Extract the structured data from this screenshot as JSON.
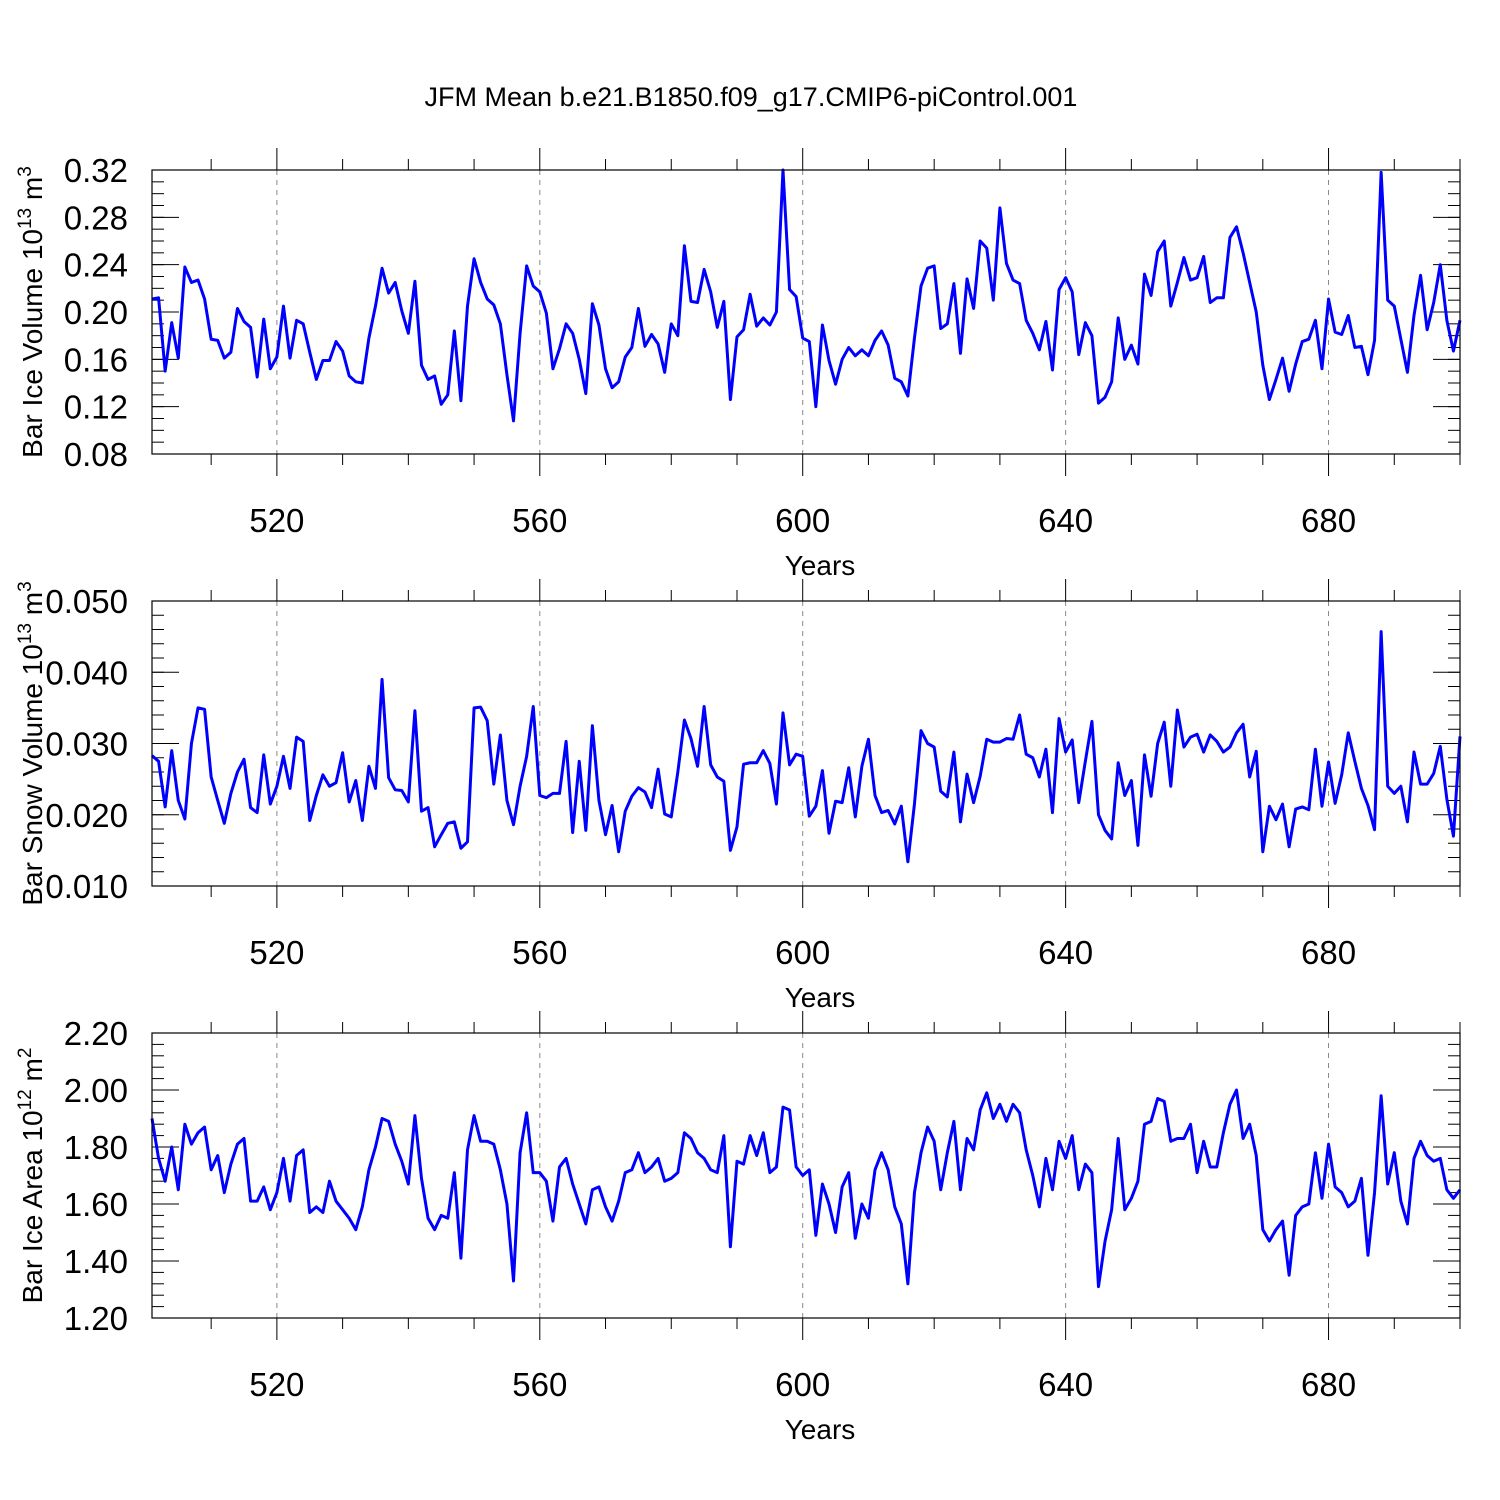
{
  "figure": {
    "title": "JFM Mean b.e21.B1850.f09_g17.CMIP6-piControl.001",
    "line_color": "#0000ff",
    "grid_color": "#888888"
  },
  "chart_data": [
    {
      "type": "line",
      "title": "",
      "xlabel": "Years",
      "ylabel_prefix": "Bar Ice Volume 10",
      "ylabel_exp": "13",
      "ylabel_unit": " m",
      "ylabel_unit_exp": "3",
      "xlim": [
        501,
        700
      ],
      "ylim": [
        0.08,
        0.32
      ],
      "xticks": [
        520,
        560,
        600,
        640,
        680
      ],
      "xtick_labels": [
        "520",
        "560",
        "600",
        "640",
        "680"
      ],
      "yticks": [
        0.08,
        0.12,
        0.16,
        0.2,
        0.24,
        0.28,
        0.32
      ],
      "ytick_labels": [
        "0.08",
        "0.12",
        "0.16",
        "0.20",
        "0.24",
        "0.28",
        "0.32"
      ],
      "y_minor_step": 0.01,
      "grid_x": true,
      "x_start": 501,
      "values": [
        0.211,
        0.212,
        0.15,
        0.191,
        0.161,
        0.238,
        0.225,
        0.227,
        0.211,
        0.177,
        0.176,
        0.161,
        0.166,
        0.203,
        0.192,
        0.187,
        0.145,
        0.194,
        0.152,
        0.162,
        0.205,
        0.161,
        0.193,
        0.19,
        0.166,
        0.143,
        0.159,
        0.159,
        0.175,
        0.167,
        0.146,
        0.141,
        0.14,
        0.178,
        0.205,
        0.237,
        0.216,
        0.225,
        0.201,
        0.182,
        0.226,
        0.155,
        0.143,
        0.146,
        0.122,
        0.13,
        0.184,
        0.125,
        0.205,
        0.245,
        0.225,
        0.211,
        0.206,
        0.19,
        0.147,
        0.108,
        0.182,
        0.239,
        0.222,
        0.217,
        0.199,
        0.152,
        0.169,
        0.19,
        0.182,
        0.16,
        0.131,
        0.207,
        0.189,
        0.152,
        0.136,
        0.141,
        0.162,
        0.17,
        0.203,
        0.171,
        0.181,
        0.173,
        0.149,
        0.19,
        0.18,
        0.256,
        0.209,
        0.208,
        0.236,
        0.217,
        0.187,
        0.209,
        0.126,
        0.179,
        0.185,
        0.215,
        0.188,
        0.195,
        0.189,
        0.2,
        0.32,
        0.219,
        0.213,
        0.178,
        0.175,
        0.12,
        0.189,
        0.159,
        0.139,
        0.16,
        0.17,
        0.163,
        0.168,
        0.163,
        0.176,
        0.184,
        0.172,
        0.144,
        0.141,
        0.129,
        0.178,
        0.222,
        0.237,
        0.239,
        0.186,
        0.19,
        0.224,
        0.165,
        0.228,
        0.203,
        0.26,
        0.254,
        0.21,
        0.288,
        0.241,
        0.227,
        0.224,
        0.193,
        0.182,
        0.168,
        0.192,
        0.151,
        0.219,
        0.229,
        0.217,
        0.164,
        0.191,
        0.18,
        0.123,
        0.128,
        0.141,
        0.195,
        0.16,
        0.172,
        0.156,
        0.232,
        0.214,
        0.251,
        0.26,
        0.205,
        0.225,
        0.246,
        0.227,
        0.229,
        0.247,
        0.208,
        0.212,
        0.212,
        0.263,
        0.272,
        0.25,
        0.225,
        0.2,
        0.155,
        0.126,
        0.143,
        0.161,
        0.133,
        0.156,
        0.175,
        0.177,
        0.193,
        0.152,
        0.211,
        0.183,
        0.181,
        0.197,
        0.17,
        0.171,
        0.147,
        0.176,
        0.318,
        0.21,
        0.205,
        0.177,
        0.149,
        0.197,
        0.231,
        0.185,
        0.208,
        0.24,
        0.193,
        0.167,
        0.193
      ]
    },
    {
      "type": "line",
      "title": "",
      "xlabel": "Years",
      "ylabel_prefix": "Bar Snow Volume 10",
      "ylabel_exp": "13",
      "ylabel_unit": " m",
      "ylabel_unit_exp": "3",
      "xlim": [
        501,
        700
      ],
      "ylim": [
        0.01,
        0.05
      ],
      "xticks": [
        520,
        560,
        600,
        640,
        680
      ],
      "xtick_labels": [
        "520",
        "560",
        "600",
        "640",
        "680"
      ],
      "yticks": [
        0.01,
        0.02,
        0.03,
        0.04,
        0.05
      ],
      "ytick_labels": [
        "0.010",
        "0.020",
        "0.030",
        "0.040",
        "0.050"
      ],
      "y_minor_step": 0.002,
      "grid_x": true,
      "x_start": 501,
      "values": [
        0.0283,
        0.0275,
        0.0211,
        0.029,
        0.022,
        0.0194,
        0.03,
        0.035,
        0.0348,
        0.0253,
        0.022,
        0.0188,
        0.023,
        0.026,
        0.0278,
        0.021,
        0.0203,
        0.0284,
        0.0215,
        0.024,
        0.0282,
        0.0237,
        0.0309,
        0.0303,
        0.0192,
        0.0227,
        0.0256,
        0.024,
        0.0245,
        0.0287,
        0.0218,
        0.0248,
        0.0192,
        0.0268,
        0.0237,
        0.039,
        0.0252,
        0.0235,
        0.0234,
        0.0218,
        0.0346,
        0.0205,
        0.021,
        0.0155,
        0.0172,
        0.0188,
        0.019,
        0.0153,
        0.0162,
        0.035,
        0.0351,
        0.0332,
        0.0243,
        0.0312,
        0.022,
        0.0186,
        0.024,
        0.0282,
        0.0352,
        0.0227,
        0.0224,
        0.023,
        0.023,
        0.0303,
        0.0175,
        0.0275,
        0.0178,
        0.0325,
        0.022,
        0.0172,
        0.0213,
        0.0148,
        0.0205,
        0.0226,
        0.0238,
        0.0232,
        0.021,
        0.0264,
        0.0201,
        0.0197,
        0.026,
        0.0333,
        0.0307,
        0.0268,
        0.0352,
        0.027,
        0.0253,
        0.0247,
        0.015,
        0.0183,
        0.0271,
        0.0273,
        0.0273,
        0.029,
        0.0272,
        0.0215,
        0.0343,
        0.027,
        0.0285,
        0.0282,
        0.0198,
        0.0212,
        0.0262,
        0.0174,
        0.0219,
        0.0217,
        0.0266,
        0.0197,
        0.0268,
        0.0306,
        0.0227,
        0.0203,
        0.0206,
        0.0187,
        0.0212,
        0.0134,
        0.0215,
        0.0318,
        0.03,
        0.0295,
        0.0233,
        0.0225,
        0.0288,
        0.019,
        0.0257,
        0.0217,
        0.0254,
        0.0306,
        0.0302,
        0.0302,
        0.0307,
        0.0306,
        0.034,
        0.0285,
        0.028,
        0.0253,
        0.0292,
        0.0203,
        0.0335,
        0.0288,
        0.0305,
        0.0217,
        0.0275,
        0.0331,
        0.02,
        0.0178,
        0.0166,
        0.0273,
        0.0227,
        0.0248,
        0.0157,
        0.0284,
        0.0226,
        0.03,
        0.033,
        0.024,
        0.0347,
        0.0295,
        0.0309,
        0.0313,
        0.0288,
        0.0312,
        0.0303,
        0.0288,
        0.0295,
        0.0315,
        0.0327,
        0.0253,
        0.0289,
        0.0148,
        0.0212,
        0.0193,
        0.0215,
        0.0155,
        0.0208,
        0.0211,
        0.0207,
        0.0292,
        0.0212,
        0.0274,
        0.0216,
        0.0256,
        0.0315,
        0.0275,
        0.0237,
        0.0213,
        0.0179,
        0.0457,
        0.024,
        0.023,
        0.024,
        0.019,
        0.0288,
        0.0243,
        0.0243,
        0.0258,
        0.0296,
        0.0222,
        0.017,
        0.031
      ]
    },
    {
      "type": "line",
      "title": "",
      "xlabel": "Years",
      "ylabel_prefix": "Bar Ice Area 10",
      "ylabel_exp": "12",
      "ylabel_unit": " m",
      "ylabel_unit_exp": "2",
      "xlim": [
        501,
        700
      ],
      "ylim": [
        1.2,
        2.2
      ],
      "xticks": [
        520,
        560,
        600,
        640,
        680
      ],
      "xtick_labels": [
        "520",
        "560",
        "600",
        "640",
        "680"
      ],
      "yticks": [
        1.2,
        1.4,
        1.6,
        1.8,
        2.0,
        2.2
      ],
      "ytick_labels": [
        "1.20",
        "1.40",
        "1.60",
        "1.80",
        "2.00",
        "2.20"
      ],
      "y_minor_step": 0.04,
      "grid_x": true,
      "x_start": 501,
      "values": [
        1.9,
        1.76,
        1.68,
        1.8,
        1.65,
        1.88,
        1.81,
        1.85,
        1.87,
        1.72,
        1.77,
        1.64,
        1.74,
        1.81,
        1.83,
        1.61,
        1.61,
        1.66,
        1.58,
        1.64,
        1.76,
        1.61,
        1.77,
        1.79,
        1.57,
        1.59,
        1.57,
        1.68,
        1.61,
        1.58,
        1.55,
        1.51,
        1.59,
        1.72,
        1.8,
        1.9,
        1.89,
        1.81,
        1.75,
        1.67,
        1.91,
        1.69,
        1.55,
        1.51,
        1.56,
        1.55,
        1.71,
        1.41,
        1.79,
        1.91,
        1.82,
        1.82,
        1.81,
        1.72,
        1.6,
        1.33,
        1.78,
        1.92,
        1.71,
        1.71,
        1.68,
        1.54,
        1.73,
        1.76,
        1.67,
        1.6,
        1.53,
        1.65,
        1.66,
        1.59,
        1.54,
        1.61,
        1.71,
        1.72,
        1.78,
        1.71,
        1.73,
        1.76,
        1.68,
        1.69,
        1.71,
        1.85,
        1.83,
        1.78,
        1.76,
        1.72,
        1.71,
        1.84,
        1.45,
        1.75,
        1.74,
        1.84,
        1.77,
        1.85,
        1.71,
        1.73,
        1.94,
        1.93,
        1.73,
        1.7,
        1.72,
        1.49,
        1.67,
        1.6,
        1.5,
        1.66,
        1.71,
        1.48,
        1.6,
        1.55,
        1.72,
        1.78,
        1.72,
        1.59,
        1.53,
        1.32,
        1.64,
        1.78,
        1.87,
        1.82,
        1.65,
        1.78,
        1.89,
        1.65,
        1.83,
        1.79,
        1.93,
        1.99,
        1.9,
        1.95,
        1.89,
        1.95,
        1.92,
        1.79,
        1.7,
        1.59,
        1.76,
        1.65,
        1.82,
        1.76,
        1.84,
        1.65,
        1.74,
        1.71,
        1.31,
        1.47,
        1.58,
        1.83,
        1.58,
        1.62,
        1.68,
        1.88,
        1.89,
        1.97,
        1.96,
        1.82,
        1.83,
        1.83,
        1.88,
        1.71,
        1.82,
        1.73,
        1.73,
        1.85,
        1.95,
        2.0,
        1.83,
        1.88,
        1.77,
        1.51,
        1.47,
        1.51,
        1.54,
        1.35,
        1.56,
        1.59,
        1.6,
        1.78,
        1.62,
        1.81,
        1.66,
        1.64,
        1.59,
        1.61,
        1.69,
        1.42,
        1.64,
        1.98,
        1.67,
        1.78,
        1.61,
        1.53,
        1.76,
        1.82,
        1.77,
        1.75,
        1.76,
        1.65,
        1.62,
        1.65
      ]
    }
  ]
}
